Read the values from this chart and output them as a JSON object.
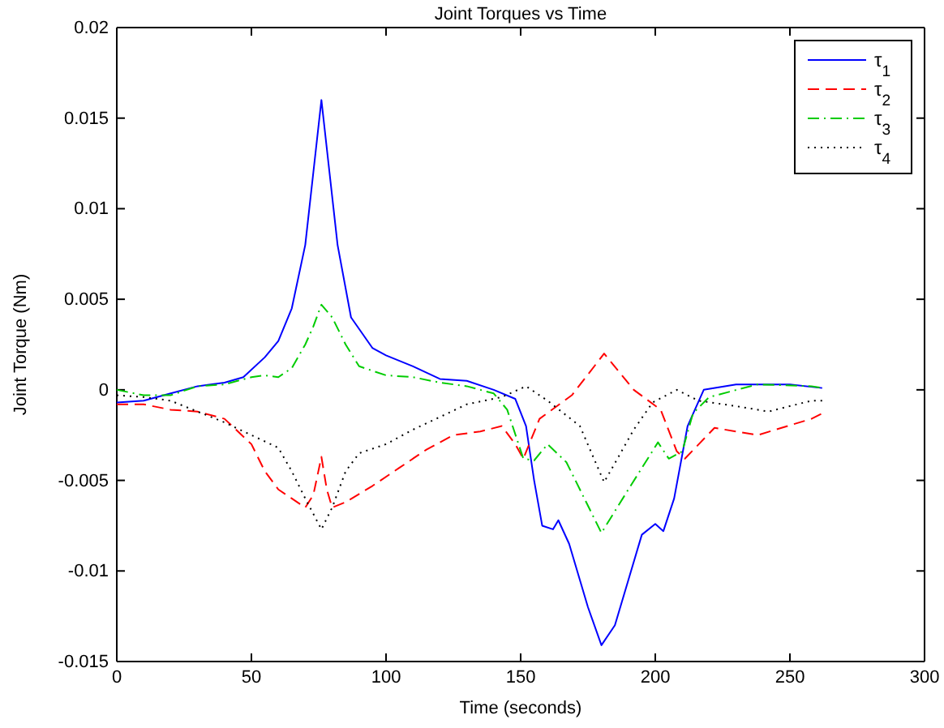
{
  "chart_data": {
    "type": "line",
    "title": "Joint Torques vs Time",
    "xlabel": "Time (seconds)",
    "ylabel": "Joint Torque (Nm)",
    "xlim": [
      0,
      300
    ],
    "xticks": [
      0,
      50,
      100,
      150,
      200,
      250,
      300
    ],
    "ylim": [
      -0.015,
      0.02
    ],
    "yticks": [
      -0.015,
      -0.01,
      -0.005,
      0,
      0.005,
      0.01,
      0.015,
      0.02
    ],
    "legend": "top right",
    "grid": false,
    "series": [
      {
        "name": "τ$_{1}$",
        "color": "#0000ff",
        "line_style": "solid",
        "x": [
          0,
          10,
          20,
          30,
          40,
          47,
          55,
          60,
          65,
          70,
          73,
          76,
          79,
          82,
          87,
          95,
          100,
          110,
          120,
          130,
          140,
          148,
          152,
          155,
          158,
          162,
          164,
          168,
          175,
          180,
          185,
          190,
          195,
          200,
          203,
          207,
          212,
          218,
          230,
          240,
          250,
          262
        ],
        "values": [
          -0.0007,
          -0.0006,
          -0.0002,
          0.0002,
          0.0004,
          0.0007,
          0.0018,
          0.0027,
          0.0045,
          0.008,
          0.012,
          0.016,
          0.012,
          0.008,
          0.004,
          0.0023,
          0.0019,
          0.0013,
          0.0006,
          0.0005,
          0.0,
          -0.0005,
          -0.002,
          -0.005,
          -0.0075,
          -0.0077,
          -0.0072,
          -0.0085,
          -0.012,
          -0.0141,
          -0.013,
          -0.0105,
          -0.008,
          -0.0074,
          -0.0078,
          -0.006,
          -0.002,
          0.0,
          0.0003,
          0.0003,
          0.0003,
          0.0001
        ]
      },
      {
        "name": "τ$_{2}$",
        "color": "#ff0000",
        "line_style": "dashed",
        "x": [
          0,
          10,
          20,
          30,
          40,
          50,
          55,
          60,
          65,
          70,
          73,
          76,
          78,
          80,
          85,
          95,
          105,
          115,
          125,
          135,
          143,
          148,
          151,
          157,
          169,
          181,
          192,
          202,
          208,
          211,
          222,
          238,
          258,
          262
        ],
        "values": [
          -0.0008,
          -0.0008,
          -0.0011,
          -0.0012,
          -0.0016,
          -0.003,
          -0.0045,
          -0.0055,
          -0.006,
          -0.0065,
          -0.0058,
          -0.0037,
          -0.0055,
          -0.0065,
          -0.0062,
          -0.0053,
          -0.0043,
          -0.0033,
          -0.0025,
          -0.0023,
          -0.002,
          -0.003,
          -0.0038,
          -0.0016,
          -0.0003,
          0.002,
          0.0,
          -0.0011,
          -0.0034,
          -0.0038,
          -0.0021,
          -0.0025,
          -0.0016,
          -0.0013
        ]
      },
      {
        "name": "τ$_{3}$",
        "color": "#00cc00",
        "line_style": "dashdot",
        "x": [
          0,
          10,
          20,
          30,
          40,
          50,
          55,
          60,
          65,
          70,
          73,
          76,
          80,
          85,
          90,
          100,
          110,
          120,
          130,
          140,
          145,
          151,
          155,
          160,
          167,
          180,
          190,
          201,
          205,
          210,
          214,
          220,
          238,
          258,
          262
        ],
        "values": [
          0.0,
          -0.0003,
          -0.0003,
          0.0002,
          0.0003,
          0.0007,
          0.0008,
          0.0007,
          0.0012,
          0.0025,
          0.0035,
          0.0047,
          0.004,
          0.0025,
          0.0013,
          0.0008,
          0.0007,
          0.0004,
          0.0002,
          -0.0002,
          -0.0011,
          -0.0038,
          -0.0039,
          -0.003,
          -0.004,
          -0.0079,
          -0.0055,
          -0.0029,
          -0.0038,
          -0.0034,
          -0.0013,
          -0.0004,
          0.0003,
          0.0002,
          0.0001
        ]
      },
      {
        "name": "τ$_{4}$",
        "color": "#000000",
        "line_style": "dotted",
        "x": [
          0,
          10,
          20,
          30,
          40,
          50,
          60,
          65,
          70,
          76,
          80,
          85,
          90,
          100,
          110,
          120,
          130,
          143,
          152,
          160,
          172,
          181,
          192,
          199,
          208,
          216,
          230,
          242,
          258,
          262
        ],
        "values": [
          -0.0003,
          -0.0004,
          -0.0006,
          -0.0012,
          -0.0018,
          -0.0025,
          -0.0032,
          -0.0045,
          -0.006,
          -0.0077,
          -0.0065,
          -0.0045,
          -0.0035,
          -0.003,
          -0.0022,
          -0.0015,
          -0.0008,
          -0.0004,
          0.0002,
          -0.0006,
          -0.002,
          -0.0051,
          -0.0022,
          -0.0007,
          0.0,
          -0.0006,
          -0.0009,
          -0.0012,
          -0.0006,
          -0.0006
        ]
      }
    ]
  }
}
